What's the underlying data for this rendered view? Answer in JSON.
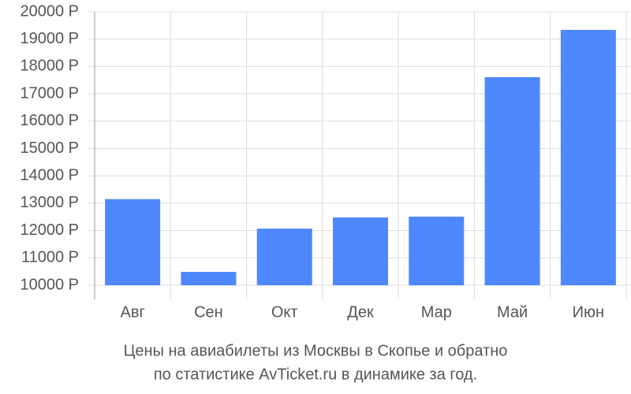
{
  "chart_data": {
    "type": "bar",
    "title": "Цены на авиабилеты из Москвы в Скопье и обратно",
    "subtitle": "по статистике AvTicket.ru в динамике за год.",
    "categories": [
      "Авг",
      "Сен",
      "Окт",
      "Дек",
      "Мар",
      "Май",
      "Июн"
    ],
    "values": [
      13150,
      10490,
      12070,
      12480,
      12510,
      17610,
      19340
    ],
    "color": "#4d88ff",
    "ylim": [
      10000,
      20000
    ],
    "yticks": [
      {
        "value": 10000,
        "label": "10000 Р"
      },
      {
        "value": 11000,
        "label": "11000 Р"
      },
      {
        "value": 12000,
        "label": "12000 Р"
      },
      {
        "value": 13000,
        "label": "13000 Р"
      },
      {
        "value": 14000,
        "label": "14000 Р"
      },
      {
        "value": 15000,
        "label": "15000 Р"
      },
      {
        "value": 16000,
        "label": "16000 Р"
      },
      {
        "value": 17000,
        "label": "17000 Р"
      },
      {
        "value": 18000,
        "label": "18000 Р"
      },
      {
        "value": 19000,
        "label": "19000 Р"
      },
      {
        "value": 20000,
        "label": "20000 Р"
      }
    ],
    "grid": true
  }
}
